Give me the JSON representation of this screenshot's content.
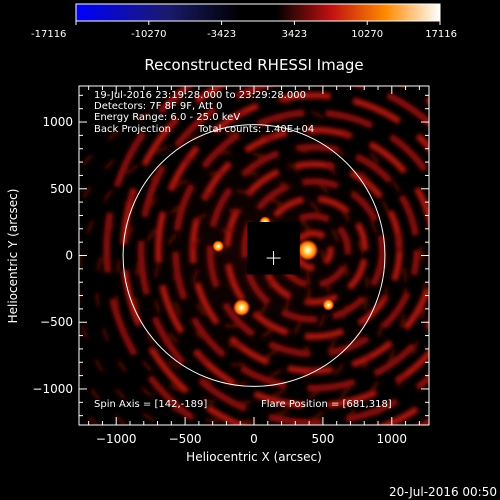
{
  "colorbar": {
    "tick_labels": [
      "-17116",
      "-10270",
      "-3423",
      "3423",
      "10270",
      "17116"
    ],
    "tick_values": [
      -17116,
      -10270,
      -3423,
      3423,
      10270,
      17116
    ],
    "range": [
      -17116,
      17116
    ]
  },
  "plot": {
    "title": "Reconstructed RHESSI Image",
    "info_lines": [
      "19-Jul-2016 23:19:28.000 to 23:29:28.000",
      "Detectors: 7F 8F 9F, Att 0",
      "Energy Range: 6.0 - 25.0 keV"
    ],
    "info_method": "Back Projection",
    "info_counts": "Total counts: 1.40E+04",
    "spin_axis": "Spin Axis = [142,-189]",
    "flare_position": "Flare Position = [681,318]",
    "footer_timestamp": "20-Jul-2016 00:50"
  },
  "chart_data": {
    "type": "heatmap",
    "title": "Reconstructed RHESSI Image",
    "xlabel": "Heliocentric X (arcsec)",
    "ylabel": "Heliocentric Y (arcsec)",
    "xlim": [
      -1270,
      1270
    ],
    "ylim": [
      -1270,
      1270
    ],
    "x_ticks": [
      -1000,
      -500,
      0,
      500,
      1000
    ],
    "y_ticks": [
      -1000,
      -500,
      0,
      500,
      1000
    ],
    "x_tick_labels": [
      "−1000",
      "−500",
      "0",
      "500",
      "1000"
    ],
    "y_tick_labels": [
      "−1000",
      "−500",
      "0",
      "500",
      "1000"
    ],
    "solar_limb_radius": 950,
    "spin_axis": [
      142,
      -189
    ],
    "flare_position": [
      681,
      318
    ],
    "bright_sources": [
      {
        "x": 390,
        "y": 40
      },
      {
        "x": -90,
        "y": -390
      },
      {
        "x": 80,
        "y": 250
      },
      {
        "x": -260,
        "y": 70
      },
      {
        "x": 540,
        "y": -370
      }
    ]
  }
}
